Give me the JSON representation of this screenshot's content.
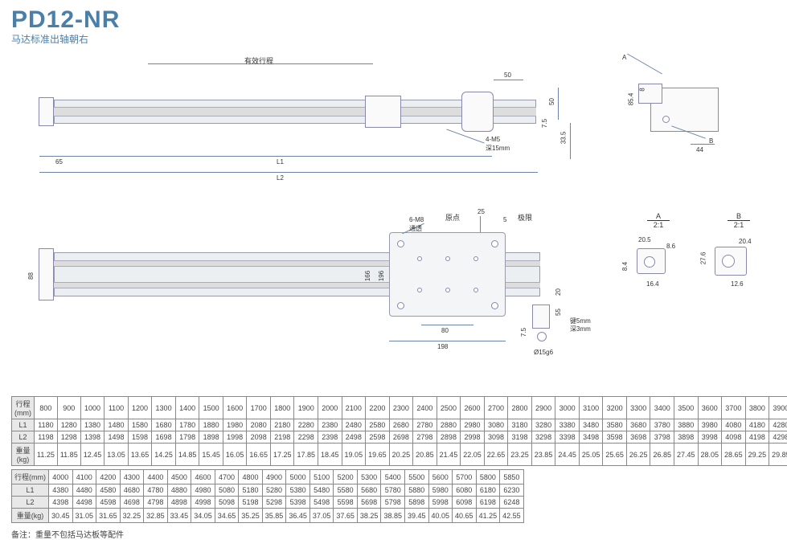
{
  "header": {
    "model": "PD12-NR",
    "model_color": "#4a7fa8",
    "subtitle": "马达标准出轴朝右",
    "subtitle_color": "#4a7fa8"
  },
  "labels": {
    "effective_stroke": "有效行程",
    "origin": "原点",
    "limit": "极限",
    "detailA_title": "A",
    "detailA_scale": "2:1",
    "detailB_title": "B",
    "detailB_scale": "2:1"
  },
  "callouts": {
    "m_holes_4m5": "4-M5",
    "m_holes_4m5_depth": "深15mm",
    "m_holes_6m8": "6-M8",
    "m_holes_6m8_thru": "通透",
    "key5": "键5mm",
    "key5_depth": "深3mm",
    "shaft": "Ø15g6",
    "A_arrow": "A",
    "B_arrow": "B"
  },
  "dims": {
    "d65": "65",
    "L1": "L1",
    "L2": "L2",
    "d50a": "50",
    "d50b": "50",
    "d7_5": "7.5",
    "d33_5": "33.5",
    "d85_4": "85.4",
    "d8": "8",
    "d44": "44",
    "d88": "88",
    "d166": "166",
    "d196": "196",
    "d80": "80",
    "d198": "198",
    "d25": "25",
    "d5": "5",
    "d55": "55",
    "d20": "20",
    "d7_5b": "7.5",
    "d20_5": "20.5",
    "d8_6": "8.6",
    "d16_4": "16.4",
    "d8_4": "8.4",
    "d27_6": "27.6",
    "d20_4": "20.4",
    "d12_6": "12.6"
  },
  "tables": {
    "header": "行程(mm)",
    "L1h": "L1",
    "L2h": "L2",
    "Wh": "重量(kg)",
    "t1_stroke": [
      "800",
      "900",
      "1000",
      "1100",
      "1200",
      "1300",
      "1400",
      "1500",
      "1600",
      "1700",
      "1800",
      "1900",
      "2000",
      "2100",
      "2200",
      "2300",
      "2400",
      "2500",
      "2600",
      "2700",
      "2800",
      "2900",
      "3000",
      "3100",
      "3200",
      "3300",
      "3400",
      "3500",
      "3600",
      "3700",
      "3800",
      "3900"
    ],
    "t1_L1": [
      "1180",
      "1280",
      "1380",
      "1480",
      "1580",
      "1680",
      "1780",
      "1880",
      "1980",
      "2080",
      "2180",
      "2280",
      "2380",
      "2480",
      "2580",
      "2680",
      "2780",
      "2880",
      "2980",
      "3080",
      "3180",
      "3280",
      "3380",
      "3480",
      "3580",
      "3680",
      "3780",
      "3880",
      "3980",
      "4080",
      "4180",
      "4280"
    ],
    "t1_L2": [
      "1198",
      "1298",
      "1398",
      "1498",
      "1598",
      "1698",
      "1798",
      "1898",
      "1998",
      "2098",
      "2198",
      "2298",
      "2398",
      "2498",
      "2598",
      "2698",
      "2798",
      "2898",
      "2998",
      "3098",
      "3198",
      "3298",
      "3398",
      "3498",
      "3598",
      "3698",
      "3798",
      "3898",
      "3998",
      "4098",
      "4198",
      "4298"
    ],
    "t1_W": [
      "11.25",
      "11.85",
      "12.45",
      "13.05",
      "13.65",
      "14.25",
      "14.85",
      "15.45",
      "16.05",
      "16.65",
      "17.25",
      "17.85",
      "18.45",
      "19.05",
      "19.65",
      "20.25",
      "20.85",
      "21.45",
      "22.05",
      "22.65",
      "23.25",
      "23.85",
      "24.45",
      "25.05",
      "25.65",
      "26.25",
      "26.85",
      "27.45",
      "28.05",
      "28.65",
      "29.25",
      "29.85"
    ],
    "t2_stroke": [
      "4000",
      "4100",
      "4200",
      "4300",
      "4400",
      "4500",
      "4600",
      "4700",
      "4800",
      "4900",
      "5000",
      "5100",
      "5200",
      "5300",
      "5400",
      "5500",
      "5600",
      "5700",
      "5800",
      "5850"
    ],
    "t2_L1": [
      "4380",
      "4480",
      "4580",
      "4680",
      "4780",
      "4880",
      "4980",
      "5080",
      "5180",
      "5280",
      "5380",
      "5480",
      "5580",
      "5680",
      "5780",
      "5880",
      "5980",
      "6080",
      "6180",
      "6230"
    ],
    "t2_L2": [
      "4398",
      "4498",
      "4598",
      "4698",
      "4798",
      "4898",
      "4998",
      "5098",
      "5198",
      "5298",
      "5398",
      "5498",
      "5598",
      "5698",
      "5798",
      "5898",
      "5998",
      "6098",
      "6198",
      "6248"
    ],
    "t2_W": [
      "30.45",
      "31.05",
      "31.65",
      "32.25",
      "32.85",
      "33.45",
      "34.05",
      "34.65",
      "35.25",
      "35.85",
      "36.45",
      "37.05",
      "37.65",
      "38.25",
      "38.85",
      "39.45",
      "40.05",
      "40.65",
      "41.25",
      "42.55"
    ]
  },
  "footer": "备注：重量不包括马达板等配件",
  "colors": {
    "dim_line": "#6a85a8",
    "body_fill": "#eceff1"
  }
}
